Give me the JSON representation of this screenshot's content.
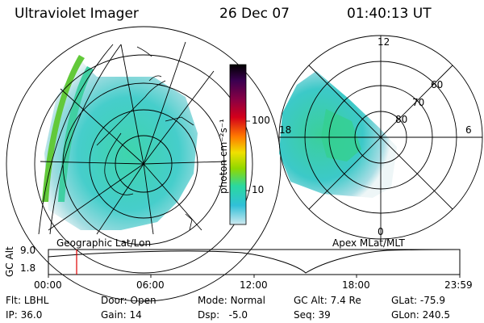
{
  "header": {
    "instrument": "Ultraviolet Imager",
    "date": "26 Dec 07",
    "time": "01:40:13 UT"
  },
  "left_panel": {
    "label": "Geographic Lat/Lon"
  },
  "colorbar": {
    "unit_label": "photon cm⁻²s⁻¹",
    "ticks": [
      "100",
      "10"
    ],
    "colors": [
      "#000000",
      "#3a0050",
      "#8a0044",
      "#d4001a",
      "#ff7a00",
      "#f0e000",
      "#90d800",
      "#2ad8a0",
      "#30c0d8",
      "#cfe9ef"
    ]
  },
  "right_panel": {
    "label": "Apex MLat/MLT",
    "mlt_labels": [
      "12",
      "18",
      "6",
      "0"
    ],
    "mlat_labels": [
      "60",
      "70",
      "80"
    ]
  },
  "gc_alt_plot": {
    "ylabel": "GC Alt",
    "yticks": [
      "9.0",
      "1.8"
    ],
    "xticks": [
      "00:00",
      "06:00",
      "12:00",
      "18:00",
      "23:59"
    ],
    "marker_time": "01:40",
    "marker_color": "#e00000"
  },
  "info": {
    "row1": [
      {
        "key": "Flt:",
        "value": "LBHL"
      },
      {
        "key": "Door:",
        "value": "Open"
      },
      {
        "key": "Mode:",
        "value": "Normal"
      },
      {
        "key": "GC Alt:",
        "value": "7.4 Re"
      },
      {
        "key": "GLat:",
        "value": "-75.9"
      }
    ],
    "row2": [
      {
        "key": "IP:",
        "value": "36.0"
      },
      {
        "key": "Gain:",
        "value": "14"
      },
      {
        "key": "Dsp:",
        "value": "-5.0"
      },
      {
        "key": "Seq:",
        "value": "39"
      },
      {
        "key": "GLon:",
        "value": "240.5"
      }
    ]
  }
}
